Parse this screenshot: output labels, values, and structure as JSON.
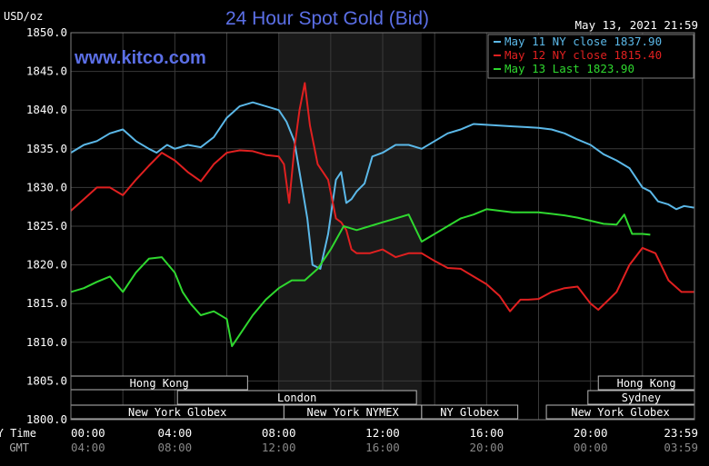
{
  "chart_data": {
    "type": "line",
    "title": "24 Hour Spot Gold (Bid)",
    "watermark": "www.kitco.com",
    "ylabel": "USD/oz",
    "timestamp": "May 13, 2021 21:59",
    "ylim": [
      1800,
      1850
    ],
    "yticks": [
      "1850.0",
      "1845.0",
      "1840.0",
      "1835.0",
      "1830.0",
      "1825.0",
      "1820.0",
      "1815.0",
      "1810.0",
      "1805.0",
      "1800.0"
    ],
    "x_ny_label": "NY Time",
    "x_gmt_label": "GMT",
    "x_ny_ticks": [
      "00:00",
      "04:00",
      "08:00",
      "12:00",
      "16:00",
      "20:00",
      "23:59"
    ],
    "x_gmt_ticks": [
      "04:00",
      "08:00",
      "12:00",
      "16:00",
      "20:00",
      "00:00",
      "03:59"
    ],
    "xlim": [
      0,
      24
    ],
    "shaded_hours": [
      8,
      13.5
    ],
    "legend_placement": "top-right",
    "grid": true,
    "colors": {
      "title": "#5b6fe6",
      "watermark": "#5b6fe6",
      "blue": "#5bb8e8",
      "red": "#e02020",
      "green": "#2fd82f",
      "grid": "#3a3a3a",
      "shade": "#1a1a1a",
      "session_bg": "#000000",
      "session_border": "#b8b8b8"
    },
    "series": [
      {
        "name": "May 11 NY close 1837.90",
        "color": "#5bb8e8",
        "x": [
          0,
          0.5,
          1,
          1.5,
          2,
          2.5,
          3,
          3.3,
          3.7,
          4,
          4.5,
          5,
          5.5,
          6,
          6.5,
          7,
          7.5,
          8,
          8.3,
          8.6,
          8.9,
          9.1,
          9.3,
          9.6,
          9.9,
          10.2,
          10.4,
          10.6,
          10.8,
          11,
          11.3,
          11.6,
          12,
          12.5,
          13,
          13.5,
          14,
          14.5,
          15,
          15.5,
          16,
          16.5,
          17,
          17.5,
          18,
          18.5,
          19,
          19.5,
          20,
          20.5,
          21,
          21.5,
          22,
          22.3,
          22.6,
          23,
          23.3,
          23.6,
          23.98
        ],
        "y": [
          1834.5,
          1835.5,
          1836,
          1837,
          1837.5,
          1836,
          1835,
          1834.5,
          1835.5,
          1835,
          1835.5,
          1835.2,
          1836.5,
          1839,
          1840.5,
          1841,
          1840.5,
          1840,
          1838.5,
          1836,
          1830,
          1826,
          1820,
          1819.5,
          1824,
          1831,
          1832,
          1828,
          1828.5,
          1829.5,
          1830.5,
          1834,
          1834.5,
          1835.5,
          1835.5,
          1835,
          1836,
          1837,
          1837.5,
          1838.2,
          1838.1,
          1838,
          1837.9,
          1837.8,
          1837.7,
          1837.5,
          1837,
          1836.2,
          1835.5,
          1834.3,
          1833.5,
          1832.5,
          1830,
          1829.5,
          1828.2,
          1827.8,
          1827.2,
          1827.6,
          1827.4
        ]
      },
      {
        "name": "May 12 NY close 1815.40",
        "color": "#e02020",
        "x": [
          0,
          0.5,
          1,
          1.5,
          2,
          2.5,
          3,
          3.5,
          4,
          4.5,
          5,
          5.5,
          6,
          6.5,
          7,
          7.5,
          8,
          8.2,
          8.4,
          8.6,
          8.8,
          9,
          9.2,
          9.5,
          9.7,
          9.9,
          10.2,
          10.4,
          10.6,
          10.8,
          11,
          11.5,
          12,
          12.5,
          13,
          13.5,
          14,
          14.5,
          15,
          15.5,
          16,
          16.5,
          16.9,
          17.3,
          17.6,
          18,
          18.5,
          19,
          19.5,
          20,
          20.3,
          20.7,
          21,
          21.5,
          22,
          22.5,
          23,
          23.5,
          23.98
        ],
        "y": [
          1827,
          1828.5,
          1830,
          1830,
          1829,
          1831,
          1832.8,
          1834.5,
          1833.5,
          1832,
          1830.8,
          1833,
          1834.5,
          1834.8,
          1834.7,
          1834.2,
          1834,
          1833,
          1828,
          1835,
          1840,
          1843.5,
          1838,
          1833,
          1832,
          1831,
          1826,
          1825.5,
          1824.5,
          1822,
          1821.5,
          1821.5,
          1822,
          1821,
          1821.5,
          1821.5,
          1820.5,
          1819.6,
          1819.5,
          1818.5,
          1817.5,
          1816,
          1814,
          1815.5,
          1815.5,
          1815.6,
          1816.5,
          1817,
          1817.2,
          1815,
          1814.2,
          1815.5,
          1816.5,
          1820,
          1822.2,
          1821.5,
          1818,
          1816.5,
          1816.5
        ]
      },
      {
        "name": "May 13 Last 1823.90",
        "color": "#2fd82f",
        "x": [
          0,
          0.5,
          1,
          1.5,
          2,
          2.5,
          3,
          3.5,
          4,
          4.3,
          4.6,
          5,
          5.5,
          6,
          6.2,
          6.5,
          7,
          7.5,
          8,
          8.5,
          9,
          9.5,
          10,
          10.5,
          11,
          11.5,
          12,
          12.5,
          13,
          13.5,
          14,
          14.5,
          15,
          15.5,
          16,
          16.5,
          17,
          17.5,
          18,
          18.5,
          19,
          19.5,
          20,
          20.5,
          21,
          21.3,
          21.6,
          22,
          22.3
        ],
        "y": [
          1816.5,
          1817,
          1817.8,
          1818.5,
          1816.5,
          1819,
          1820.8,
          1821,
          1819,
          1816.5,
          1815,
          1813.5,
          1814,
          1813,
          1809.5,
          1811,
          1813.5,
          1815.5,
          1817,
          1818,
          1818,
          1819.5,
          1822,
          1825,
          1824.5,
          1825,
          1825.5,
          1826,
          1826.5,
          1823,
          1824,
          1825,
          1826,
          1826.5,
          1827.2,
          1827,
          1826.8,
          1826.8,
          1826.8,
          1826.6,
          1826.4,
          1826.1,
          1825.7,
          1825.3,
          1825.2,
          1826.5,
          1824,
          1824,
          1823.9
        ]
      }
    ],
    "sessions": [
      {
        "label": "Hong Kong",
        "start": 0,
        "end": 6.8,
        "row": 0
      },
      {
        "label": "Hong Kong",
        "start": 20.3,
        "end": 24,
        "row": 0
      },
      {
        "label": "London",
        "start": 4.1,
        "end": 13.3,
        "row": 1
      },
      {
        "label": "Sydney",
        "start": 19.9,
        "end": 24,
        "row": 1
      },
      {
        "label": "New York Globex",
        "start": 0,
        "end": 8.2,
        "row": 2
      },
      {
        "label": "New York NYMEX",
        "start": 8.2,
        "end": 13.5,
        "row": 2
      },
      {
        "label": "NY Globex",
        "start": 13.5,
        "end": 17.2,
        "row": 2
      },
      {
        "label": "New York Globex",
        "start": 18.3,
        "end": 24,
        "row": 2
      }
    ]
  }
}
